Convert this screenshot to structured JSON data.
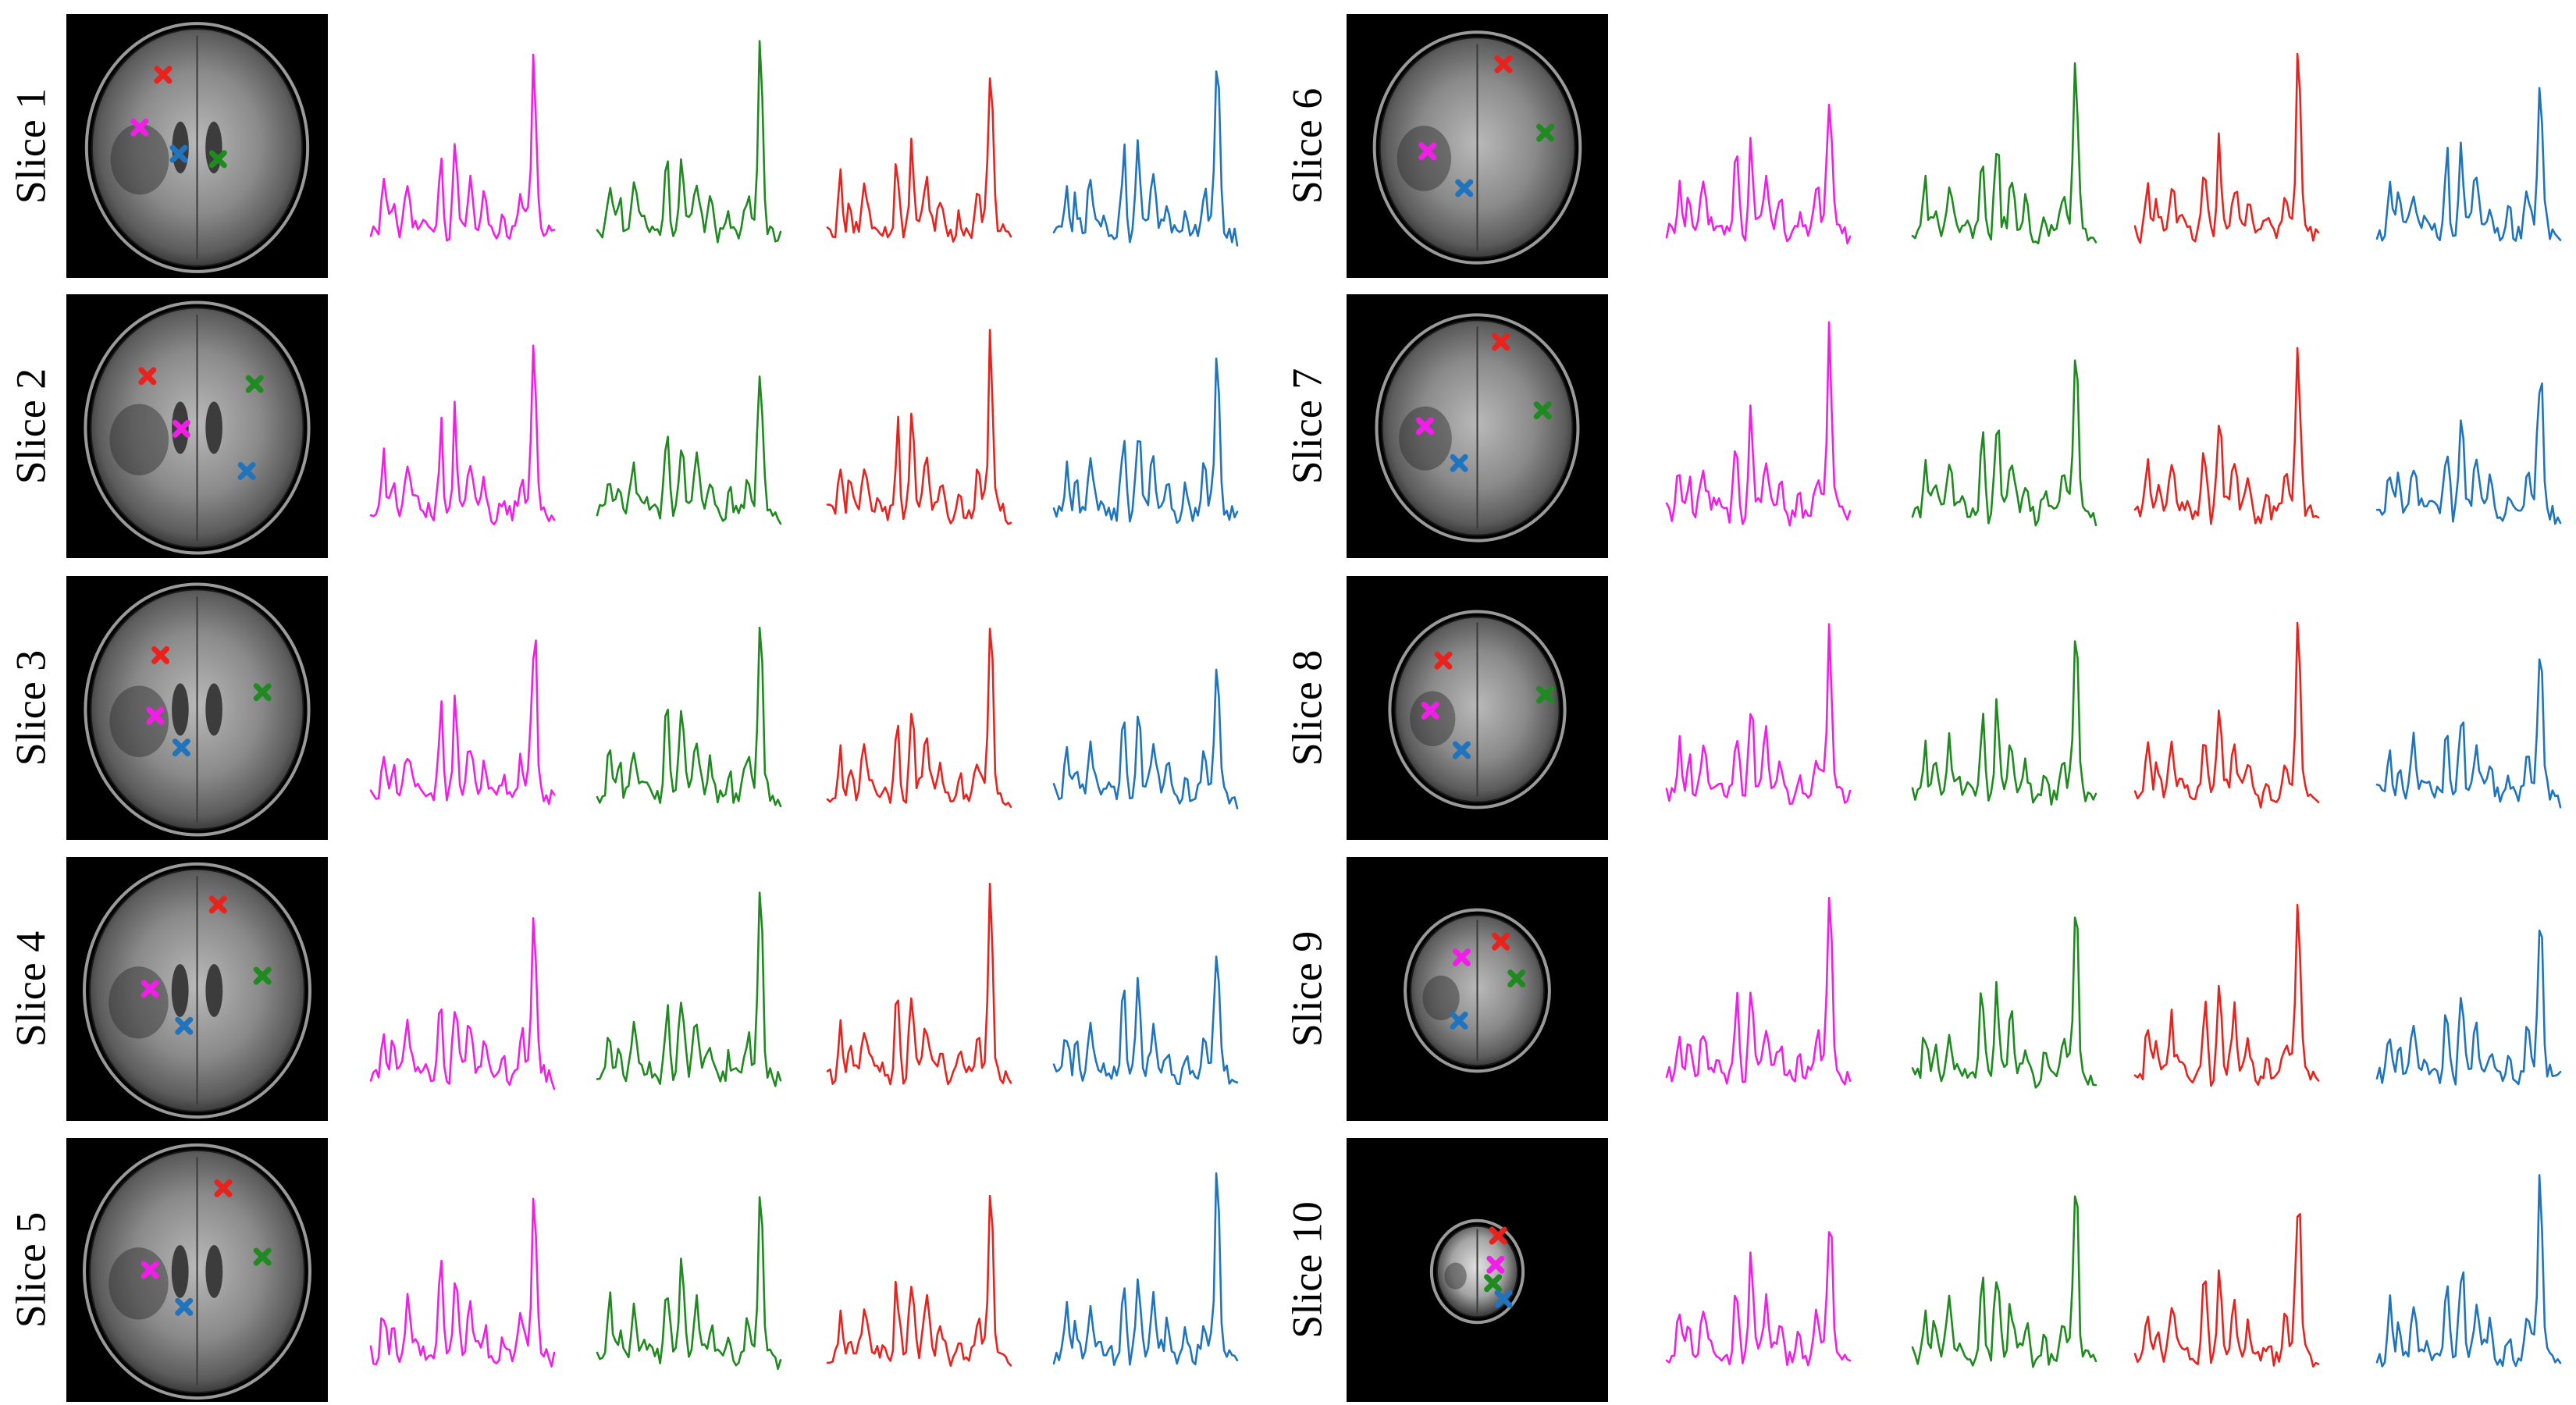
{
  "figure": {
    "marker_colors": {
      "magenta": "#f21ee8",
      "green": "#1f8a1f",
      "red": "#e8231e",
      "blue": "#1f74bd"
    },
    "trace_order": [
      "magenta",
      "green",
      "red",
      "blue"
    ],
    "slices": [
      {
        "label": "Slice 1",
        "column": "left",
        "row": 0
      },
      {
        "label": "Slice 2",
        "column": "left",
        "row": 1
      },
      {
        "label": "Slice 3",
        "column": "left",
        "row": 2
      },
      {
        "label": "Slice 4",
        "column": "left",
        "row": 3
      },
      {
        "label": "Slice 5",
        "column": "left",
        "row": 4
      },
      {
        "label": "Slice 6",
        "column": "right",
        "row": 0
      },
      {
        "label": "Slice 7",
        "column": "right",
        "row": 1
      },
      {
        "label": "Slice 8",
        "column": "right",
        "row": 2
      },
      {
        "label": "Slice 9",
        "column": "right",
        "row": 3
      },
      {
        "label": "Slice 10",
        "column": "right",
        "row": 4
      }
    ]
  }
}
